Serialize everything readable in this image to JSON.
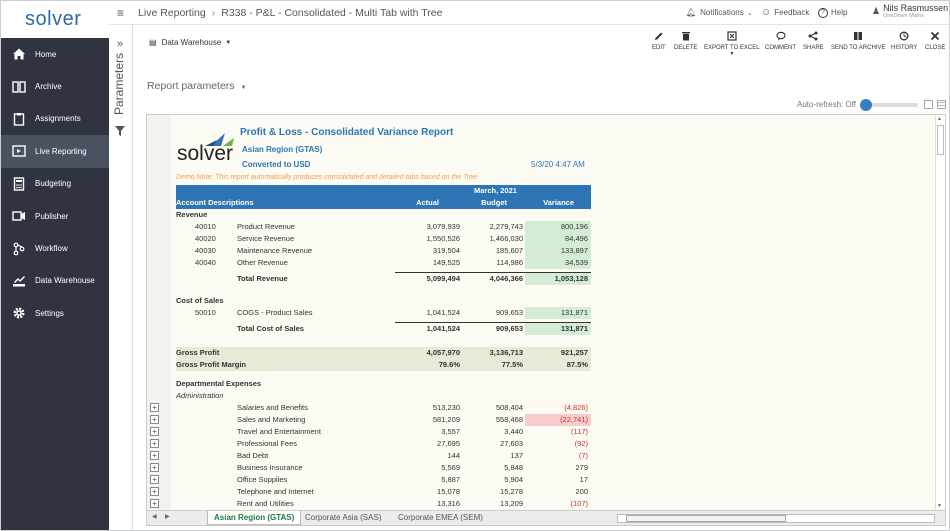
{
  "logo": "solver",
  "sidebar": {
    "items": [
      {
        "label": "Home",
        "icon": "home-icon"
      },
      {
        "label": "Archive",
        "icon": "archive-icon"
      },
      {
        "label": "Assignments",
        "icon": "assignments-icon"
      },
      {
        "label": "Live Reporting",
        "icon": "live-reporting-icon",
        "active": true
      },
      {
        "label": "Budgeting",
        "icon": "calculator-icon"
      },
      {
        "label": "Publisher",
        "icon": "publisher-icon"
      },
      {
        "label": "Workflow",
        "icon": "workflow-icon"
      },
      {
        "label": "Data Warehouse",
        "icon": "data-warehouse-icon"
      },
      {
        "label": "Settings",
        "icon": "gear-icon"
      }
    ]
  },
  "topbar": {
    "crumb1": "Live Reporting",
    "crumb2": "R338 - P&L - Consolidated - Multi Tab with Tree",
    "notifications": "Notifications",
    "feedback": "Feedback",
    "help": "Help",
    "user_name": "Nils Rasmussen",
    "user_company": "OneDown Matrix"
  },
  "toolbar": {
    "source": "Data Warehouse",
    "actions": [
      "Edit",
      "Delete",
      "Export to Excel",
      "Comment",
      "Share",
      "Send to Archive",
      "History",
      "Close"
    ]
  },
  "params": {
    "vertical_label": "Parameters",
    "report_parameters": "Report parameters",
    "autorefresh": "Auto-refresh: Off"
  },
  "report": {
    "title": "Profit & Loss - Consolidated  Variance Report",
    "region": "Asian Region (GTAS)",
    "currency": "Converted to USD",
    "datetime": "5/3/20 4:47 AM",
    "demo_note": "Demo Note: This report automatically produces consolidated and detailed tabs based on the Tree",
    "period": "March, 2021",
    "headers": {
      "desc": "Account Descriptions",
      "actual": "Actual",
      "budget": "Budget",
      "variance": "Variance"
    },
    "revenue_label": "Revenue",
    "revenue": [
      {
        "code": "40010",
        "desc": "Product Revenue",
        "actual": "3,079,939",
        "budget": "2,279,743",
        "variance": "800,196"
      },
      {
        "code": "40020",
        "desc": "Service Revenue",
        "actual": "1,550,526",
        "budget": "1,466,030",
        "variance": "84,496"
      },
      {
        "code": "40030",
        "desc": "Maintenance Revenue",
        "actual": "319,504",
        "budget": "185,607",
        "variance": "133,897"
      },
      {
        "code": "40040",
        "desc": "Other Revenue",
        "actual": "149,525",
        "budget": "114,986",
        "variance": "34,539"
      }
    ],
    "total_revenue": {
      "desc": "Total Revenue",
      "actual": "5,099,494",
      "budget": "4,046,366",
      "variance": "1,053,128"
    },
    "cos_label": "Cost of Sales",
    "cos": [
      {
        "code": "50010",
        "desc": "COGS - Product Sales",
        "actual": "1,041,524",
        "budget": "909,653",
        "variance": "131,871"
      }
    ],
    "total_cos": {
      "desc": "Total Cost of Sales",
      "actual": "1,041,524",
      "budget": "909,653",
      "variance": "131,871"
    },
    "gross_profit": {
      "desc": "Gross Profit",
      "actual": "4,057,970",
      "budget": "3,136,713",
      "variance": "921,257"
    },
    "gross_margin": {
      "desc": "Gross Profit Margin",
      "actual": "79.6%",
      "budget": "77.5%",
      "variance": "87.5%"
    },
    "dept_label": "Departmental Expenses",
    "admin_label": "Administration",
    "expenses": [
      {
        "desc": "Salaries and Benefits",
        "actual": "513,230",
        "budget": "508,404",
        "variance": "(4,826)",
        "neg": true
      },
      {
        "desc": "Sales and Marketing",
        "actual": "581,209",
        "budget": "558,468",
        "variance": "(22,741)",
        "neg": true,
        "hl": true
      },
      {
        "desc": "Travel and Entertainment",
        "actual": "3,557",
        "budget": "3,440",
        "variance": "(117)",
        "neg": true
      },
      {
        "desc": "Professional Fees",
        "actual": "27,695",
        "budget": "27,603",
        "variance": "(92)",
        "neg": true
      },
      {
        "desc": "Bad Debt",
        "actual": "144",
        "budget": "137",
        "variance": "(7)",
        "neg": true
      },
      {
        "desc": "Business Insurance",
        "actual": "5,569",
        "budget": "5,848",
        "variance": "279"
      },
      {
        "desc": "Office Supplies",
        "actual": "5,887",
        "budget": "5,904",
        "variance": "17"
      },
      {
        "desc": "Telephone and Internet",
        "actual": "15,078",
        "budget": "15,278",
        "variance": "200"
      },
      {
        "desc": "Rent and Utilities",
        "actual": "13,316",
        "budget": "13,209",
        "variance": "(107)",
        "neg": true
      }
    ]
  },
  "tabs": [
    "Asian Region (GTAS)",
    "Corporate Asia (SAS)",
    "Corporate EMEA (SEM)"
  ],
  "colors": {
    "sidebar": "#2f3440",
    "accent": "#2e75b6",
    "header_bar": "#2e75b6",
    "positive_fill": "#d4ecd6",
    "negative_fill": "#f8cccd",
    "total_fill": "#e6ead7"
  }
}
